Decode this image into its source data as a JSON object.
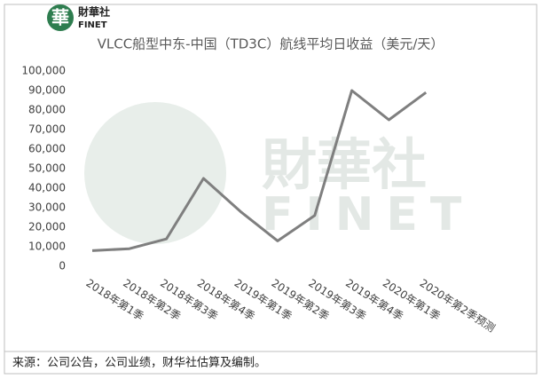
{
  "logo": {
    "emblem": "華",
    "name": "財華社",
    "brand": "FINET"
  },
  "watermark": {
    "name": "財華社",
    "brand": "FINET"
  },
  "chart_data": {
    "type": "line",
    "title": "VLCC船型中东-中国（TD3C）航线平均日收益（美元/天）",
    "categories": [
      "2018年第1季",
      "2018年第2季",
      "2018年第3季",
      "2018年第4季",
      "2019年第1季",
      "2019年第2季",
      "2019年第3季",
      "2019年第4季",
      "2020年第1季",
      "2020年第2季预测"
    ],
    "values": [
      8000,
      9000,
      14000,
      45000,
      28000,
      13000,
      26000,
      90000,
      75000,
      89000
    ],
    "color": "#7f7f7f",
    "ylim": [
      0,
      100000
    ],
    "yticks": [
      0,
      {
        "value": 10000,
        "label": "10,000"
      },
      {
        "value": 20000,
        "label": "20,000"
      },
      {
        "value": 30000,
        "label": "30,000"
      },
      {
        "value": 40000,
        "label": "40,000"
      },
      {
        "value": 50000,
        "label": "50,000"
      },
      {
        "value": 60000,
        "label": "60,000"
      },
      {
        "value": 70000,
        "label": "70,000"
      },
      {
        "value": 80000,
        "label": "80,000"
      },
      {
        "value": 90000,
        "label": "90,000"
      },
      {
        "value": 100000,
        "label": "100,000"
      }
    ],
    "grid": false
  },
  "source": "来源：公司公告，公司业绩，财华社估算及编制。"
}
